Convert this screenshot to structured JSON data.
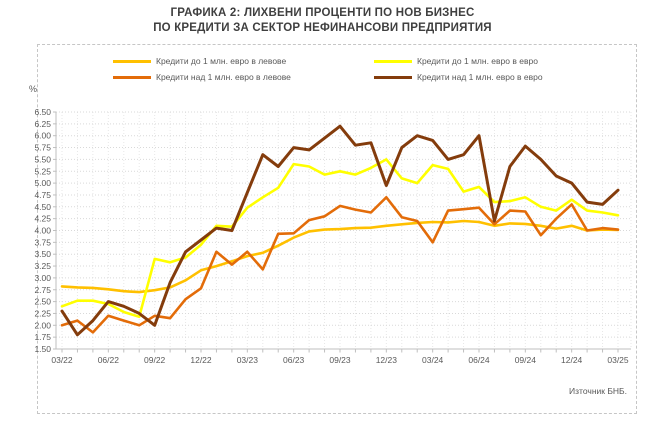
{
  "title": {
    "line1": "ГРАФИКА 2: ЛИХВЕНИ ПРОЦЕНТИ ПО НОВ БИЗНЕС",
    "line2": "ПО КРЕДИТИ ЗА СЕКТОР НЕФИНАНСОВИ ПРЕДПРИЯТИЯ"
  },
  "source": "Източник БНБ.",
  "colors": {
    "title_text": "#3f3f3f",
    "axis_text": "#595959",
    "gridline": "#d9d9d9",
    "minor_grid": "#e7e7e7",
    "axis_line": "#bfbfbf"
  },
  "chart_data": {
    "type": "line",
    "title": "ГРАФИКА 2: ЛИХВЕНИ ПРОЦЕНТИ ПО НОВ БИЗНЕС ПО КРЕДИТИ ЗА СЕКТОР НЕФИНАНСОВИ ПРЕДПРИЯТИЯ",
    "ylabel": "%",
    "ylim": [
      1.5,
      6.5
    ],
    "y_step": 0.25,
    "grid": "dotted",
    "legend_position": "top",
    "x_frequency": "monthly",
    "x_tick_labels": [
      "03/22",
      "06/22",
      "09/22",
      "12/22",
      "03/23",
      "06/23",
      "09/23",
      "12/23",
      "03/24",
      "06/24",
      "09/24",
      "12/24",
      "03/25"
    ],
    "series": [
      {
        "name": "Кредити до 1 млн. евро в левове",
        "color": "#FFC000",
        "width": 2.6,
        "values": [
          2.82,
          2.8,
          2.79,
          2.76,
          2.72,
          2.7,
          2.74,
          2.8,
          2.95,
          3.16,
          3.25,
          3.35,
          3.46,
          3.53,
          3.68,
          3.85,
          3.98,
          4.02,
          4.03,
          4.05,
          4.06,
          4.1,
          4.13,
          4.16,
          4.18,
          4.17,
          4.2,
          4.18,
          4.1,
          4.15,
          4.14,
          4.1,
          4.04,
          4.1,
          4.0,
          4.02,
          4.01
        ]
      },
      {
        "name": "Кредити до 1 млн. евро в евро",
        "color": "#FFFF00",
        "width": 2.6,
        "values": [
          2.4,
          2.52,
          2.52,
          2.45,
          2.28,
          2.18,
          3.4,
          3.33,
          3.43,
          3.7,
          4.1,
          4.08,
          4.48,
          4.7,
          4.9,
          5.4,
          5.35,
          5.18,
          5.25,
          5.18,
          5.32,
          5.5,
          5.1,
          5.0,
          5.38,
          5.3,
          4.82,
          4.92,
          4.6,
          4.62,
          4.7,
          4.5,
          4.42,
          4.65,
          4.42,
          4.38,
          4.32
        ]
      },
      {
        "name": "Кредити над 1 млн. евро в левове",
        "color": "#E36C09",
        "width": 2.6,
        "values": [
          2.0,
          2.1,
          1.85,
          2.2,
          2.1,
          2.0,
          2.2,
          2.15,
          2.55,
          2.78,
          3.55,
          3.28,
          3.55,
          3.18,
          3.93,
          3.94,
          4.22,
          4.3,
          4.52,
          4.44,
          4.38,
          4.7,
          4.28,
          4.2,
          3.75,
          4.42,
          4.45,
          4.48,
          4.13,
          4.42,
          4.4,
          3.9,
          4.25,
          4.55,
          4.0,
          4.05,
          4.02
        ]
      },
      {
        "name": "Кредити над 1 млн. евро в евро",
        "color": "#843C0C",
        "width": 3,
        "values": [
          2.3,
          1.8,
          2.1,
          2.5,
          2.4,
          2.25,
          2.0,
          2.9,
          3.55,
          3.8,
          4.05,
          4.0,
          4.8,
          5.6,
          5.35,
          5.75,
          5.7,
          5.95,
          6.2,
          5.8,
          5.85,
          4.95,
          5.75,
          6.0,
          5.9,
          5.5,
          5.6,
          6.0,
          4.2,
          5.35,
          5.78,
          5.5,
          5.15,
          5.0,
          4.6,
          4.55,
          4.85
        ]
      }
    ]
  }
}
